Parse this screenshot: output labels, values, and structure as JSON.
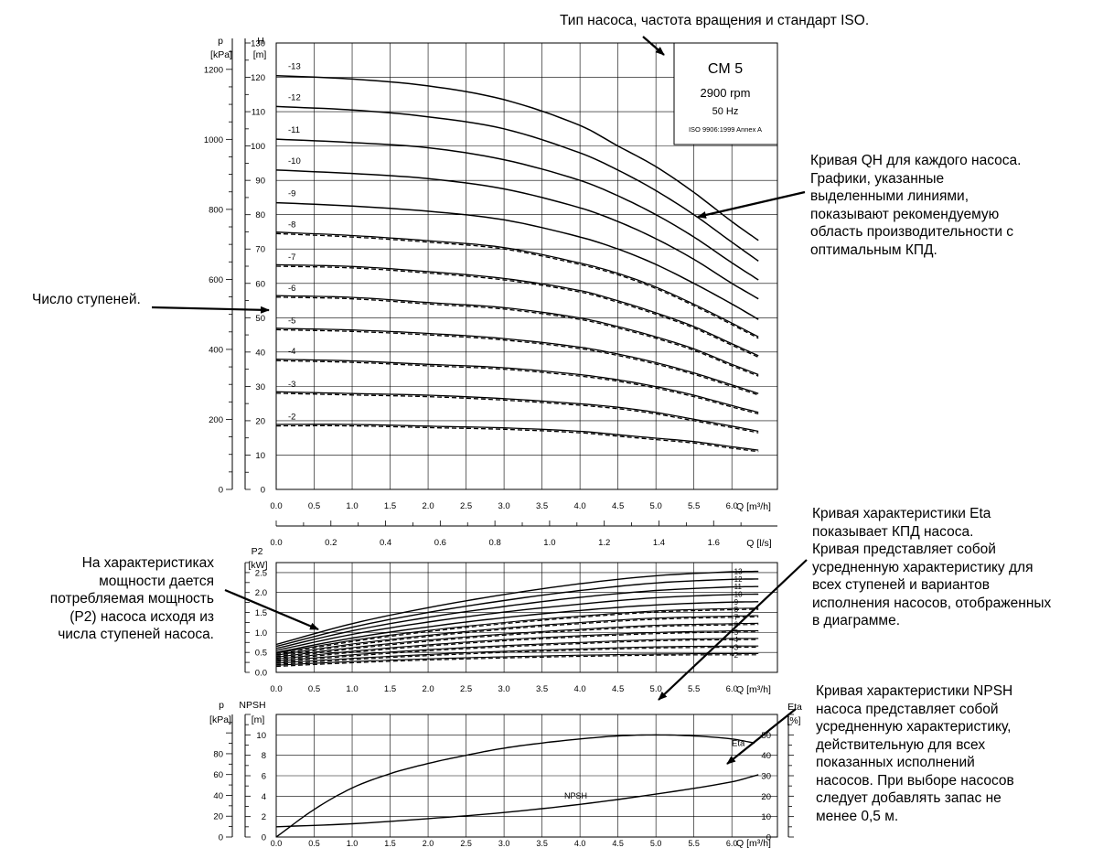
{
  "annotations": {
    "type_label": "Тип насоса, частота вращения и стандарт ISO.",
    "qh_label": [
      "Кривая QH для каждого насоса.",
      "Графики, указанные",
      "выделенными линиями,",
      "показывают рекомендуемую",
      "область производительности с",
      "оптимальным КПД."
    ],
    "stages_label": "Число ступеней.",
    "power_label": [
      "На характеристиках",
      "мощности дается",
      "потребляемая мощность",
      "(P2) насоса исходя из",
      "числа ступеней насоса."
    ],
    "eta_label": [
      "Кривая характеристики Eta",
      "показывает КПД насоса.",
      "Кривая представляет собой",
      "усредненную характеристику для",
      "всех ступеней и вариантов",
      "исполнения насосов, отображенных",
      "в диаграмме."
    ],
    "npsh_label": [
      "Кривая характеристики NPSH",
      "насоса представляет собой",
      "усредненную характеристику,",
      "действительную для всех",
      "показанных исполнений",
      "насосов. При выборе насосов",
      "следует добавлять запас не",
      "менее 0,5 м."
    ]
  },
  "pump_box": {
    "model": "CM 5",
    "speed": "2900 rpm",
    "frequency": "50 Hz",
    "standard": "ISO 9906:1999 Annex A"
  },
  "chart_data": [
    {
      "type": "line",
      "name": "QH",
      "ylabel_left_outer": [
        "p",
        "[kPa]"
      ],
      "ylabel_left": [
        "H",
        "[m]"
      ],
      "xlabel": "Q [m³/h]",
      "xlim": [
        0,
        6.6
      ],
      "ylim": [
        0,
        130
      ],
      "x_ticks": [
        0.0,
        0.5,
        1.0,
        1.5,
        2.0,
        2.5,
        3.0,
        3.5,
        4.0,
        4.5,
        5.0,
        5.5,
        6.0
      ],
      "x_ticklabels": [
        "0.0",
        "0.5",
        "1.0",
        "1.5",
        "2.0",
        "2.5",
        "3.0",
        "3.5",
        "4.0",
        "4.5",
        "5.0",
        "5.5",
        "6.0"
      ],
      "y_ticks": [
        0,
        10,
        20,
        30,
        40,
        50,
        60,
        70,
        80,
        90,
        100,
        110,
        120,
        130
      ],
      "y_ticklabels": [
        "0",
        "10",
        "20",
        "30",
        "40",
        "50",
        "60",
        "70",
        "80",
        "90",
        "100",
        "110",
        "120",
        "130"
      ],
      "kpa_ticks": [
        0,
        200,
        400,
        600,
        800,
        1000,
        1200
      ],
      "kpa_ticklabels": [
        "0",
        "200",
        "400",
        "600",
        "800",
        "1000",
        "1200"
      ],
      "grid": true,
      "second_axis": {
        "xlabel": "Q [l/s]",
        "ticks": [
          0.0,
          0.2,
          0.4,
          0.6,
          0.8,
          1.0,
          1.2,
          1.4,
          1.6
        ],
        "ticklabels": [
          "0.0",
          "0.2",
          "0.4",
          "0.6",
          "0.8",
          "1.0",
          "1.2",
          "1.4",
          "1.6"
        ]
      },
      "series": [
        {
          "name": "-13",
          "x": [
            0,
            1,
            2,
            3,
            4,
            4.5,
            5,
            5.5,
            6,
            6.35
          ],
          "y": [
            120.5,
            119.5,
            117.5,
            113.5,
            106,
            100,
            94,
            86.5,
            78,
            72.5
          ],
          "dashed": false
        },
        {
          "name": "-12",
          "x": [
            0,
            1,
            2,
            3,
            4,
            4.5,
            5,
            5.5,
            6,
            6.35
          ],
          "y": [
            111.5,
            110.5,
            108.5,
            105,
            98,
            93,
            87,
            80,
            72,
            66.5
          ],
          "dashed": false
        },
        {
          "name": "-11",
          "x": [
            0,
            1,
            2,
            3,
            4,
            4.5,
            5,
            5.5,
            6,
            6.35
          ],
          "y": [
            102,
            101,
            99.5,
            96,
            90,
            85.5,
            80,
            73.5,
            66,
            61
          ],
          "dashed": false
        },
        {
          "name": "-10",
          "x": [
            0,
            1,
            2,
            3,
            4,
            4.5,
            5,
            5.5,
            6,
            6.35
          ],
          "y": [
            93,
            92,
            90.5,
            87.5,
            82,
            78,
            73,
            67,
            60,
            55.5
          ],
          "dashed": false
        },
        {
          "name": "-9",
          "x": [
            0,
            1,
            2,
            3,
            4,
            4.5,
            5,
            5.5,
            6,
            6.35
          ],
          "y": [
            83.5,
            82.5,
            81,
            78.5,
            73.5,
            70,
            65.5,
            60,
            54,
            49.5
          ],
          "dashed": false
        },
        {
          "name": "-8",
          "x": [
            0,
            1,
            2,
            3,
            4,
            4.5,
            5,
            5.5,
            6,
            6.35
          ],
          "y": [
            74.5,
            73.5,
            72,
            70,
            65.5,
            62.5,
            58.5,
            53.5,
            48,
            44
          ],
          "dashed": true
        },
        {
          "name": "-7",
          "x": [
            0,
            1,
            2,
            3,
            4,
            4.5,
            5,
            5.5,
            6,
            6.35
          ],
          "y": [
            65,
            64.5,
            63,
            61,
            57.5,
            54.5,
            51,
            47,
            42,
            38.5
          ],
          "dashed": true
        },
        {
          "name": "-6",
          "x": [
            0,
            1,
            2,
            3,
            4,
            4.5,
            5,
            5.5,
            6,
            6.35
          ],
          "y": [
            56,
            55.5,
            54,
            52.5,
            49.5,
            47,
            44,
            40.5,
            36,
            33
          ],
          "dashed": true
        },
        {
          "name": "-5",
          "x": [
            0,
            1,
            2,
            3,
            4,
            4.5,
            5,
            5.5,
            6,
            6.35
          ],
          "y": [
            46.5,
            46,
            45,
            43.5,
            41,
            39,
            36.5,
            33.5,
            30,
            27.5
          ],
          "dashed": true
        },
        {
          "name": "-4",
          "x": [
            0,
            1,
            2,
            3,
            4,
            4.5,
            5,
            5.5,
            6,
            6.35
          ],
          "y": [
            37.5,
            37,
            36,
            35,
            33,
            31.5,
            29.5,
            27,
            24,
            22
          ],
          "dashed": true
        },
        {
          "name": "-3",
          "x": [
            0,
            1,
            2,
            3,
            4,
            4.5,
            5,
            5.5,
            6,
            6.35
          ],
          "y": [
            28,
            27.5,
            27,
            26,
            24.5,
            23.5,
            22,
            20,
            18,
            16.5
          ],
          "dashed": true
        },
        {
          "name": "-2",
          "x": [
            0,
            1,
            2,
            3,
            4,
            4.5,
            5,
            5.5,
            6,
            6.35
          ],
          "y": [
            18.5,
            18.5,
            18,
            17.5,
            16.5,
            15.5,
            14.5,
            13.5,
            12,
            11
          ],
          "dashed": true
        }
      ]
    },
    {
      "type": "line",
      "name": "P2",
      "ylabel": [
        "P2",
        "[kW]"
      ],
      "xlabel": "Q [m³/h]",
      "xlim": [
        0,
        6.6
      ],
      "ylim": [
        0,
        2.75
      ],
      "x_ticks": [
        0.0,
        0.5,
        1.0,
        1.5,
        2.0,
        2.5,
        3.0,
        3.5,
        4.0,
        4.5,
        5.0,
        5.5,
        6.0
      ],
      "x_ticklabels": [
        "0.0",
        "0.5",
        "1.0",
        "1.5",
        "2.0",
        "2.5",
        "3.0",
        "3.5",
        "4.0",
        "4.5",
        "5.0",
        "5.5",
        "6.0"
      ],
      "y_ticks": [
        0.0,
        0.5,
        1.0,
        1.5,
        2.0,
        2.5
      ],
      "y_ticklabels": [
        "0.0",
        "0.5",
        "1.0",
        "1.5",
        "2.0",
        "2.5"
      ],
      "grid": true,
      "series": [
        {
          "name": "-13",
          "x": [
            0,
            1,
            2,
            3,
            4,
            5,
            6,
            6.35
          ],
          "y": [
            0.7,
            1.22,
            1.62,
            1.95,
            2.22,
            2.42,
            2.52,
            2.53
          ],
          "dashed": false
        },
        {
          "name": "-12",
          "x": [
            0,
            1,
            2,
            3,
            4,
            5,
            6,
            6.35
          ],
          "y": [
            0.65,
            1.13,
            1.5,
            1.8,
            2.05,
            2.24,
            2.33,
            2.34
          ],
          "dashed": false
        },
        {
          "name": "-11",
          "x": [
            0,
            1,
            2,
            3,
            4,
            5,
            6,
            6.35
          ],
          "y": [
            0.6,
            1.04,
            1.38,
            1.65,
            1.88,
            2.05,
            2.14,
            2.15
          ],
          "dashed": false
        },
        {
          "name": "-10",
          "x": [
            0,
            1,
            2,
            3,
            4,
            5,
            6,
            6.35
          ],
          "y": [
            0.55,
            0.95,
            1.26,
            1.51,
            1.71,
            1.87,
            1.95,
            1.96
          ],
          "dashed": false
        },
        {
          "name": "-9",
          "x": [
            0,
            1,
            2,
            3,
            4,
            5,
            6,
            6.35
          ],
          "y": [
            0.5,
            0.86,
            1.14,
            1.37,
            1.55,
            1.69,
            1.76,
            1.77
          ],
          "dashed": false
        },
        {
          "name": "-8",
          "x": [
            0,
            1,
            2,
            3,
            4,
            5,
            6,
            6.35
          ],
          "y": [
            0.45,
            0.77,
            1.02,
            1.22,
            1.38,
            1.51,
            1.57,
            1.58
          ],
          "dashed": true
        },
        {
          "name": "-7",
          "x": [
            0,
            1,
            2,
            3,
            4,
            5,
            6,
            6.35
          ],
          "y": [
            0.4,
            0.68,
            0.9,
            1.08,
            1.22,
            1.33,
            1.38,
            1.39
          ],
          "dashed": true
        },
        {
          "name": "-6",
          "x": [
            0,
            1,
            2,
            3,
            4,
            5,
            6,
            6.35
          ],
          "y": [
            0.35,
            0.59,
            0.78,
            0.93,
            1.05,
            1.15,
            1.19,
            1.2
          ],
          "dashed": true
        },
        {
          "name": "-5",
          "x": [
            0,
            1,
            2,
            3,
            4,
            5,
            6,
            6.35
          ],
          "y": [
            0.3,
            0.5,
            0.66,
            0.79,
            0.89,
            0.97,
            1.01,
            1.01
          ],
          "dashed": true
        },
        {
          "name": "-4",
          "x": [
            0,
            1,
            2,
            3,
            4,
            5,
            6,
            6.35
          ],
          "y": [
            0.25,
            0.41,
            0.54,
            0.64,
            0.72,
            0.79,
            0.82,
            0.82
          ],
          "dashed": true
        },
        {
          "name": "-3",
          "x": [
            0,
            1,
            2,
            3,
            4,
            5,
            6,
            6.35
          ],
          "y": [
            0.2,
            0.32,
            0.42,
            0.5,
            0.56,
            0.61,
            0.63,
            0.63
          ],
          "dashed": true
        },
        {
          "name": "-2",
          "x": [
            0,
            1,
            2,
            3,
            4,
            5,
            6,
            6.35
          ],
          "y": [
            0.15,
            0.24,
            0.31,
            0.36,
            0.4,
            0.43,
            0.44,
            0.44
          ],
          "dashed": true
        }
      ]
    },
    {
      "type": "line",
      "name": "NPSH / Eta",
      "ylabel_left_outer": [
        "p",
        "[kPa]"
      ],
      "ylabel_left": [
        "NPSH",
        "[m]"
      ],
      "ylabel_right": [
        "Eta",
        "[%]"
      ],
      "xlabel": "Q [m³/h]",
      "xlim": [
        0,
        6.6
      ],
      "ylim": [
        0,
        12
      ],
      "x_ticks": [
        0.0,
        0.5,
        1.0,
        1.5,
        2.0,
        2.5,
        3.0,
        3.5,
        4.0,
        4.5,
        5.0,
        5.5,
        6.0
      ],
      "x_ticklabels": [
        "0.0",
        "0.5",
        "1.0",
        "1.5",
        "2.0",
        "2.5",
        "3.0",
        "3.5",
        "4.0",
        "4.5",
        "5.0",
        "5.5",
        "6.0"
      ],
      "y_ticks": [
        0,
        2,
        4,
        6,
        8,
        10
      ],
      "y_ticklabels": [
        "0",
        "2",
        "4",
        "6",
        "8",
        "10"
      ],
      "kpa_ticks": [
        0,
        20,
        40,
        60,
        80
      ],
      "kpa_ticklabels": [
        "0",
        "20",
        "40",
        "60",
        "80"
      ],
      "eta_ticks": [
        0,
        10,
        20,
        30,
        40,
        50
      ],
      "eta_ticklabels": [
        "0",
        "10",
        "20",
        "30",
        "40",
        "50"
      ],
      "grid": true,
      "series": [
        {
          "name": "Eta",
          "axis": "right",
          "x": [
            0,
            0.5,
            1,
            1.5,
            2,
            2.5,
            3,
            3.5,
            4,
            4.5,
            5,
            5.5,
            6,
            6.3
          ],
          "y": [
            0,
            13.5,
            24,
            31,
            36,
            40,
            43.5,
            46,
            48,
            49.5,
            50,
            49.5,
            48,
            46
          ]
        },
        {
          "name": "NPSH",
          "axis": "left",
          "x": [
            0,
            1,
            2,
            3,
            4,
            5,
            6,
            6.35
          ],
          "y": [
            1.0,
            1.3,
            1.8,
            2.4,
            3.2,
            4.2,
            5.4,
            6.1
          ]
        }
      ]
    }
  ]
}
